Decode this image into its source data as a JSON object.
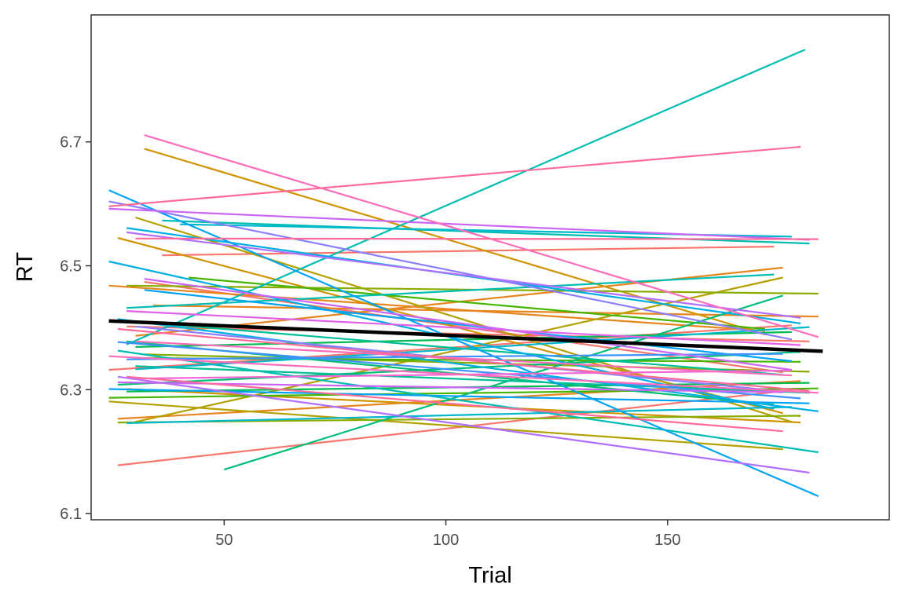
{
  "chart_data": {
    "type": "line",
    "xlabel": "Trial",
    "ylabel": "RT",
    "xlim": [
      20,
      200
    ],
    "ylim": [
      6.09,
      6.905
    ],
    "x_ticks": [
      50,
      100,
      150
    ],
    "y_ticks": [
      6.1,
      6.3,
      6.5,
      6.7
    ],
    "x_tick_labels": [
      "50",
      "100",
      "150"
    ],
    "y_tick_labels": [
      "6.1",
      "6.3",
      "6.5",
      "6.7"
    ],
    "grid": false,
    "legend": "none",
    "overall_fit": {
      "name": "",
      "color": "#000000",
      "x": [
        24,
        185
      ],
      "y": [
        6.411,
        6.362
      ]
    },
    "series": [
      {
        "color": "#F8766D",
        "x": [
          26,
          180
        ],
        "y": [
          6.178,
          6.301
        ]
      },
      {
        "color": "#F8766D",
        "x": [
          36,
          174
        ],
        "y": [
          6.517,
          6.531
        ]
      },
      {
        "color": "#F8766D",
        "x": [
          28,
          182
        ],
        "y": [
          6.402,
          6.378
        ]
      },
      {
        "color": "#F8766D",
        "x": [
          32,
          176
        ],
        "y": [
          6.474,
          6.328
        ]
      },
      {
        "color": "#F8766D",
        "x": [
          24,
          178
        ],
        "y": [
          6.332,
          6.404
        ]
      },
      {
        "color": "#E7851E",
        "x": [
          24,
          172
        ],
        "y": [
          6.468,
          6.395
        ]
      },
      {
        "color": "#E7851E",
        "x": [
          30,
          176
        ],
        "y": [
          6.387,
          6.497
        ]
      },
      {
        "color": "#E7851E",
        "x": [
          26,
          180
        ],
        "y": [
          6.253,
          6.314
        ]
      },
      {
        "color": "#E7851E",
        "x": [
          34,
          184
        ],
        "y": [
          6.436,
          6.418
        ]
      },
      {
        "color": "#D09400",
        "x": [
          32,
          172
        ],
        "y": [
          6.689,
          6.389
        ]
      },
      {
        "color": "#D09400",
        "x": [
          26,
          176
        ],
        "y": [
          6.545,
          6.262
        ]
      },
      {
        "color": "#D09400",
        "x": [
          28,
          180
        ],
        "y": [
          6.301,
          6.247
        ]
      },
      {
        "color": "#B2A100",
        "x": [
          30,
          178
        ],
        "y": [
          6.578,
          6.248
        ]
      },
      {
        "color": "#B2A100",
        "x": [
          30,
          176
        ],
        "y": [
          6.248,
          6.481
        ]
      },
      {
        "color": "#B2A100",
        "x": [
          24,
          176
        ],
        "y": [
          6.281,
          6.204
        ]
      },
      {
        "color": "#89AC00",
        "x": [
          28,
          184
        ],
        "y": [
          6.468,
          6.455
        ]
      },
      {
        "color": "#89AC00",
        "x": [
          32,
          182
        ],
        "y": [
          6.357,
          6.329
        ]
      },
      {
        "color": "#89AC00",
        "x": [
          26,
          180
        ],
        "y": [
          6.247,
          6.258
        ]
      },
      {
        "color": "#45B500",
        "x": [
          42,
          172
        ],
        "y": [
          6.481,
          6.398
        ]
      },
      {
        "color": "#45B500",
        "x": [
          24,
          184
        ],
        "y": [
          6.287,
          6.302
        ]
      },
      {
        "color": "#45B500",
        "x": [
          30,
          180
        ],
        "y": [
          6.351,
          6.345
        ]
      },
      {
        "color": "#00BC51",
        "x": [
          28,
          182
        ],
        "y": [
          6.297,
          6.311
        ]
      },
      {
        "color": "#00BC51",
        "x": [
          30,
          178
        ],
        "y": [
          6.369,
          6.393
        ]
      },
      {
        "color": "#00BE77",
        "x": [
          50,
          176
        ],
        "y": [
          6.171,
          6.452
        ]
      },
      {
        "color": "#00BE77",
        "x": [
          28,
          174
        ],
        "y": [
          6.378,
          6.276
        ]
      },
      {
        "color": "#00BE77",
        "x": [
          26,
          180
        ],
        "y": [
          6.308,
          6.361
        ]
      },
      {
        "color": "#00BF96",
        "x": [
          26,
          176
        ],
        "y": [
          6.412,
          6.324
        ]
      },
      {
        "color": "#00BF96",
        "x": [
          30,
          182
        ],
        "y": [
          6.338,
          6.295
        ]
      },
      {
        "color": "#00BDB2",
        "x": [
          28,
          181
        ],
        "y": [
          6.373,
          6.849
        ]
      },
      {
        "color": "#00BDB2",
        "x": [
          36,
          182
        ],
        "y": [
          6.573,
          6.536
        ]
      },
      {
        "color": "#00BDB2",
        "x": [
          26,
          184
        ],
        "y": [
          6.363,
          6.199
        ]
      },
      {
        "color": "#00BDB2",
        "x": [
          28,
          174
        ],
        "y": [
          6.432,
          6.486
        ]
      },
      {
        "color": "#00B8CB",
        "x": [
          40,
          178
        ],
        "y": [
          6.567,
          6.547
        ]
      },
      {
        "color": "#00B8CB",
        "x": [
          28,
          178
        ],
        "y": [
          6.246,
          6.272
        ]
      },
      {
        "color": "#00B8CB",
        "x": [
          30,
          182
        ],
        "y": [
          6.333,
          6.401
        ]
      },
      {
        "color": "#00AFE1",
        "x": [
          24,
          174
        ],
        "y": [
          6.507,
          6.269
        ]
      },
      {
        "color": "#00AFE1",
        "x": [
          28,
          180
        ],
        "y": [
          6.561,
          6.407
        ]
      },
      {
        "color": "#00AFE1",
        "x": [
          26,
          184
        ],
        "y": [
          6.414,
          6.265
        ]
      },
      {
        "color": "#00A3F4",
        "x": [
          24,
          184
        ],
        "y": [
          6.622,
          6.128
        ]
      },
      {
        "color": "#00A3F4",
        "x": [
          24,
          182
        ],
        "y": [
          6.301,
          6.278
        ]
      },
      {
        "color": "#00A3F4",
        "x": [
          32,
          178
        ],
        "y": [
          6.461,
          6.346
        ]
      },
      {
        "color": "#3E92FE",
        "x": [
          26,
          180
        ],
        "y": [
          6.377,
          6.286
        ]
      },
      {
        "color": "#3E92FE",
        "x": [
          28,
          176
        ],
        "y": [
          6.349,
          6.358
        ]
      },
      {
        "color": "#8B7FFF",
        "x": [
          24,
          178
        ],
        "y": [
          6.604,
          6.381
        ]
      },
      {
        "color": "#8B7FFF",
        "x": [
          30,
          176
        ],
        "y": [
          6.402,
          6.297
        ]
      },
      {
        "color": "#B16EFF",
        "x": [
          26,
          182
        ],
        "y": [
          6.321,
          6.166
        ]
      },
      {
        "color": "#B16EFF",
        "x": [
          28,
          180
        ],
        "y": [
          6.554,
          6.416
        ]
      },
      {
        "color": "#CA65F5",
        "x": [
          24,
          182
        ],
        "y": [
          6.592,
          6.542
        ]
      },
      {
        "color": "#CA65F5",
        "x": [
          32,
          178
        ],
        "y": [
          6.479,
          6.332
        ]
      },
      {
        "color": "#CA65F5",
        "x": [
          26,
          176
        ],
        "y": [
          6.312,
          6.296
        ]
      },
      {
        "color": "#E060E8",
        "x": [
          28,
          180
        ],
        "y": [
          6.427,
          6.372
        ]
      },
      {
        "color": "#F465D5",
        "x": [
          30,
          178
        ],
        "y": [
          6.318,
          6.331
        ]
      },
      {
        "color": "#FD6CBB",
        "x": [
          32,
          184
        ],
        "y": [
          6.711,
          6.385
        ]
      },
      {
        "color": "#FD6CBB",
        "x": [
          24,
          184
        ],
        "y": [
          6.354,
          6.295
        ]
      },
      {
        "color": "#FD6CBB",
        "x": [
          30,
          178
        ],
        "y": [
          6.378,
          6.323
        ]
      },
      {
        "color": "#FF6A98",
        "x": [
          24,
          180
        ],
        "y": [
          6.596,
          6.692
        ]
      },
      {
        "color": "#FF6A98",
        "x": [
          30,
          184
        ],
        "y": [
          6.544,
          6.543
        ]
      },
      {
        "color": "#FF6A98",
        "x": [
          26,
          182
        ],
        "y": [
          6.398,
          6.298
        ]
      },
      {
        "color": "#FF6A98",
        "x": [
          28,
          176
        ],
        "y": [
          6.321,
          6.233
        ]
      }
    ]
  }
}
